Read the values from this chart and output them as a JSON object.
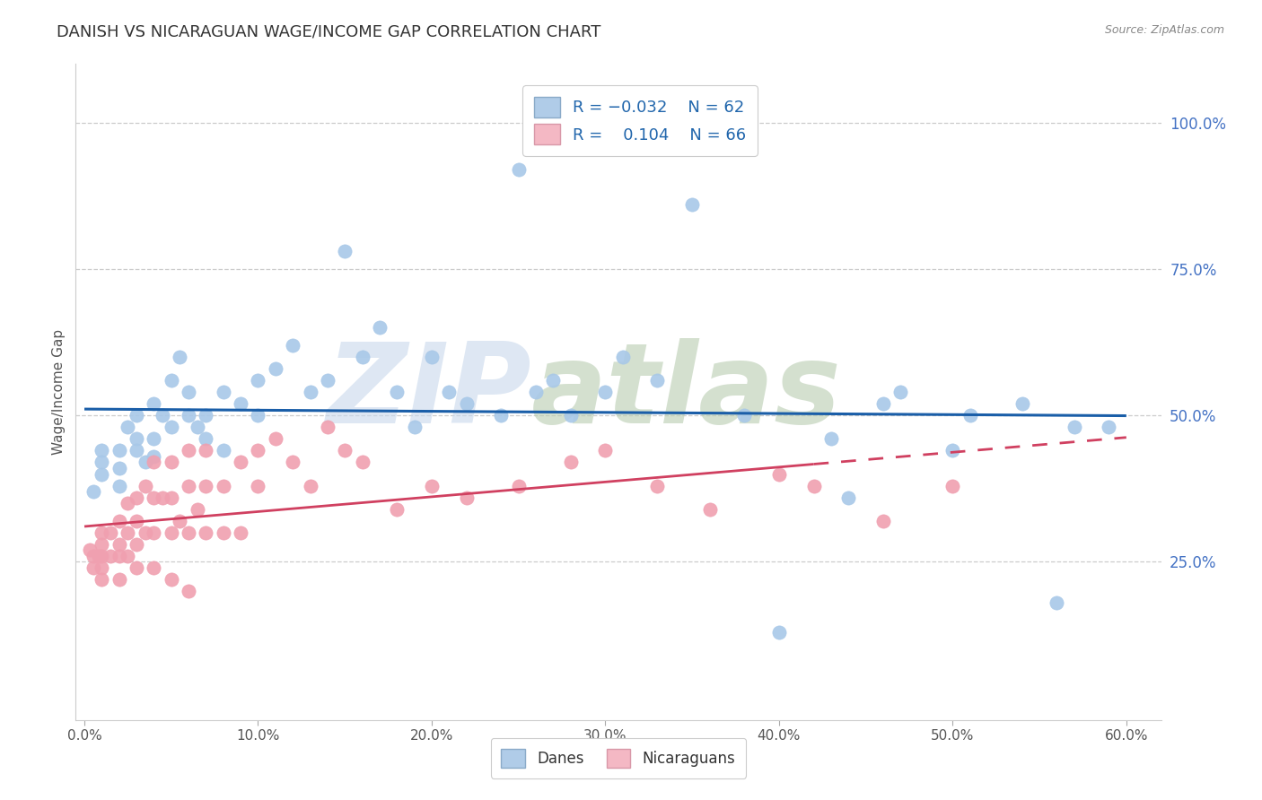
{
  "title": "DANISH VS NICARAGUAN WAGE/INCOME GAP CORRELATION CHART",
  "source": "Source: ZipAtlas.com",
  "ylabel": "Wage/Income Gap",
  "xlabel": "",
  "xlim": [
    -0.005,
    0.62
  ],
  "ylim": [
    -0.02,
    1.1
  ],
  "xtick_labels": [
    "0.0%",
    "",
    "10.0%",
    "",
    "20.0%",
    "",
    "30.0%",
    "",
    "40.0%",
    "",
    "50.0%",
    "",
    "60.0%"
  ],
  "xtick_values": [
    0.0,
    0.05,
    0.1,
    0.15,
    0.2,
    0.25,
    0.3,
    0.35,
    0.4,
    0.45,
    0.5,
    0.55,
    0.6
  ],
  "ytick_labels": [
    "25.0%",
    "50.0%",
    "75.0%",
    "100.0%"
  ],
  "ytick_values": [
    0.25,
    0.5,
    0.75,
    1.0
  ],
  "danes_R": -0.032,
  "danes_N": 62,
  "nicaraguans_R": 0.104,
  "nicaraguans_N": 66,
  "blue_color": "#a8c8e8",
  "pink_color": "#f0a0b0",
  "blue_line_color": "#1a5ea8",
  "pink_line_color": "#d04060",
  "background_color": "#ffffff",
  "grid_color": "#cccccc",
  "title_color": "#333333",
  "ytick_color": "#4472c4",
  "danes_scatter_x": [
    0.005,
    0.01,
    0.01,
    0.01,
    0.02,
    0.02,
    0.02,
    0.025,
    0.03,
    0.03,
    0.03,
    0.035,
    0.04,
    0.04,
    0.04,
    0.045,
    0.05,
    0.05,
    0.055,
    0.06,
    0.06,
    0.065,
    0.07,
    0.07,
    0.08,
    0.08,
    0.09,
    0.1,
    0.1,
    0.11,
    0.12,
    0.13,
    0.14,
    0.15,
    0.16,
    0.17,
    0.18,
    0.19,
    0.2,
    0.21,
    0.22,
    0.24,
    0.25,
    0.26,
    0.27,
    0.28,
    0.3,
    0.31,
    0.33,
    0.35,
    0.38,
    0.4,
    0.43,
    0.44,
    0.46,
    0.47,
    0.5,
    0.51,
    0.54,
    0.56,
    0.57,
    0.59
  ],
  "danes_scatter_y": [
    0.37,
    0.4,
    0.44,
    0.42,
    0.44,
    0.41,
    0.38,
    0.48,
    0.46,
    0.5,
    0.44,
    0.42,
    0.52,
    0.46,
    0.43,
    0.5,
    0.56,
    0.48,
    0.6,
    0.54,
    0.5,
    0.48,
    0.5,
    0.46,
    0.54,
    0.44,
    0.52,
    0.56,
    0.5,
    0.58,
    0.62,
    0.54,
    0.56,
    0.78,
    0.6,
    0.65,
    0.54,
    0.48,
    0.6,
    0.54,
    0.52,
    0.5,
    0.92,
    0.54,
    0.56,
    0.5,
    0.54,
    0.6,
    0.56,
    0.86,
    0.5,
    0.13,
    0.46,
    0.36,
    0.52,
    0.54,
    0.44,
    0.5,
    0.52,
    0.18,
    0.48,
    0.48
  ],
  "nicaraguans_scatter_x": [
    0.003,
    0.005,
    0.005,
    0.008,
    0.01,
    0.01,
    0.01,
    0.01,
    0.01,
    0.015,
    0.015,
    0.02,
    0.02,
    0.02,
    0.02,
    0.025,
    0.025,
    0.025,
    0.03,
    0.03,
    0.03,
    0.03,
    0.035,
    0.035,
    0.04,
    0.04,
    0.04,
    0.04,
    0.045,
    0.05,
    0.05,
    0.05,
    0.05,
    0.055,
    0.06,
    0.06,
    0.06,
    0.06,
    0.065,
    0.07,
    0.07,
    0.07,
    0.08,
    0.08,
    0.09,
    0.09,
    0.1,
    0.1,
    0.11,
    0.12,
    0.13,
    0.14,
    0.15,
    0.16,
    0.18,
    0.2,
    0.22,
    0.25,
    0.28,
    0.3,
    0.33,
    0.36,
    0.4,
    0.42,
    0.46,
    0.5
  ],
  "nicaraguans_scatter_y": [
    0.27,
    0.26,
    0.24,
    0.26,
    0.3,
    0.28,
    0.26,
    0.24,
    0.22,
    0.3,
    0.26,
    0.32,
    0.28,
    0.26,
    0.22,
    0.35,
    0.3,
    0.26,
    0.36,
    0.32,
    0.28,
    0.24,
    0.38,
    0.3,
    0.42,
    0.36,
    0.3,
    0.24,
    0.36,
    0.42,
    0.36,
    0.3,
    0.22,
    0.32,
    0.44,
    0.38,
    0.3,
    0.2,
    0.34,
    0.44,
    0.38,
    0.3,
    0.38,
    0.3,
    0.42,
    0.3,
    0.44,
    0.38,
    0.46,
    0.42,
    0.38,
    0.48,
    0.44,
    0.42,
    0.34,
    0.38,
    0.36,
    0.38,
    0.42,
    0.44,
    0.38,
    0.34,
    0.4,
    0.38,
    0.32,
    0.38
  ]
}
